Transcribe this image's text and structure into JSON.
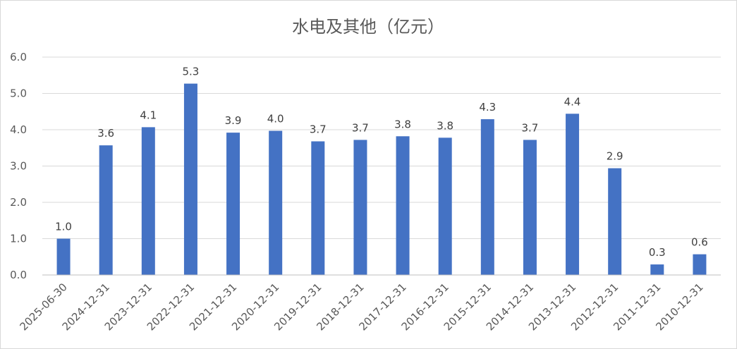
{
  "chart_data": {
    "type": "bar",
    "title": "水电及其他（亿元）",
    "xlabel": "",
    "ylabel": "",
    "categories": [
      "2025-06-30",
      "2024-12-31",
      "2023-12-31",
      "2022-12-31",
      "2021-12-31",
      "2020-12-31",
      "2019-12-31",
      "2018-12-31",
      "2017-12-31",
      "2016-12-31",
      "2015-12-31",
      "2014-12-31",
      "2013-12-31",
      "2012-12-31",
      "2011-12-31",
      "2010-12-31"
    ],
    "values": [
      1.0,
      3.57,
      4.07,
      5.27,
      3.92,
      3.97,
      3.68,
      3.72,
      3.82,
      3.78,
      4.29,
      3.72,
      4.44,
      2.94,
      0.29,
      0.57
    ],
    "data_labels": [
      "1.0",
      "3.6",
      "4.1",
      "5.3",
      "3.9",
      "4.0",
      "3.7",
      "3.7",
      "3.8",
      "3.8",
      "4.3",
      "3.7",
      "4.4",
      "2.9",
      "0.3",
      "0.6"
    ],
    "ylim": [
      0,
      6
    ],
    "yticks": [
      "0.0",
      "1.0",
      "2.0",
      "3.0",
      "4.0",
      "5.0",
      "6.0"
    ],
    "grid": true,
    "legend": "none",
    "colors": {
      "bar": "#4472c4",
      "grid": "#d9d9d9",
      "text": "#595959"
    }
  }
}
